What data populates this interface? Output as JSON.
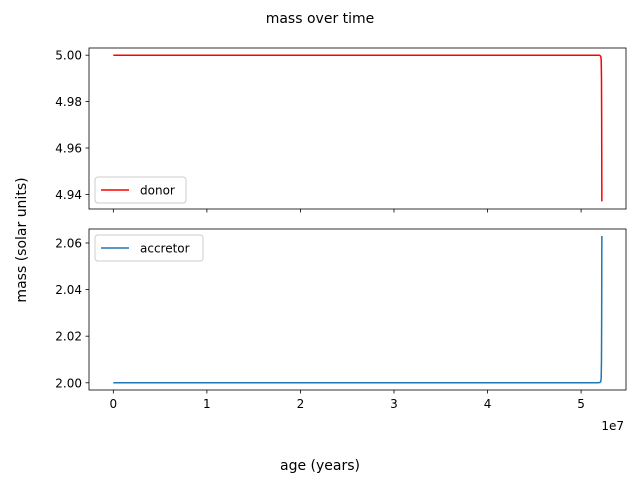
{
  "chart_data": {
    "type": "line",
    "title": "mass over time",
    "xlabel": "age (years)",
    "ylabel": "mass (solar units)",
    "x_offset_label": "1e7",
    "x_ticks": [
      0,
      10000000,
      20000000,
      30000000,
      40000000,
      50000000
    ],
    "x_tick_labels": [
      "0",
      "1",
      "2",
      "3",
      "4",
      "5"
    ],
    "xlim": [
      -2600000,
      54800000
    ],
    "grid": false,
    "panels": [
      {
        "ylim": [
          4.9337,
          5.0031
        ],
        "y_ticks": [
          4.94,
          4.96,
          4.98,
          5.0
        ],
        "y_tick_labels": [
          "4.94",
          "4.96",
          "4.98",
          "5.00"
        ],
        "legend_location": "lower left",
        "show_x_tick_labels": false,
        "series": [
          {
            "name": "donor",
            "color": "#ff0000",
            "x": [
              0,
              10000000,
              20000000,
              30000000,
              40000000,
              50000000,
              51800000,
              52000000,
              52100000,
              52150000,
              52180000,
              52200000,
              52210000,
              52220000
            ],
            "y": [
              5.0,
              5.0,
              5.0,
              5.0,
              5.0,
              5.0,
              5.0,
              4.9999,
              4.9995,
              4.998,
              4.99,
              4.97,
              4.95,
              4.937
            ]
          }
        ]
      },
      {
        "ylim": [
          1.9969,
          2.066
        ],
        "y_ticks": [
          2.0,
          2.02,
          2.04,
          2.06
        ],
        "y_tick_labels": [
          "2.00",
          "2.02",
          "2.04",
          "2.06"
        ],
        "legend_location": "upper left",
        "show_x_tick_labels": true,
        "series": [
          {
            "name": "accretor",
            "color": "#1f77b4",
            "x": [
              0,
              10000000,
              20000000,
              30000000,
              40000000,
              50000000,
              51800000,
              52000000,
              52100000,
              52150000,
              52180000,
              52200000,
              52210000,
              52220000
            ],
            "y": [
              2.0,
              2.0,
              2.0,
              2.0,
              2.0,
              2.0,
              2.0,
              2.0001,
              2.0005,
              2.002,
              2.01,
              2.03,
              2.05,
              2.063
            ]
          }
        ]
      }
    ]
  }
}
